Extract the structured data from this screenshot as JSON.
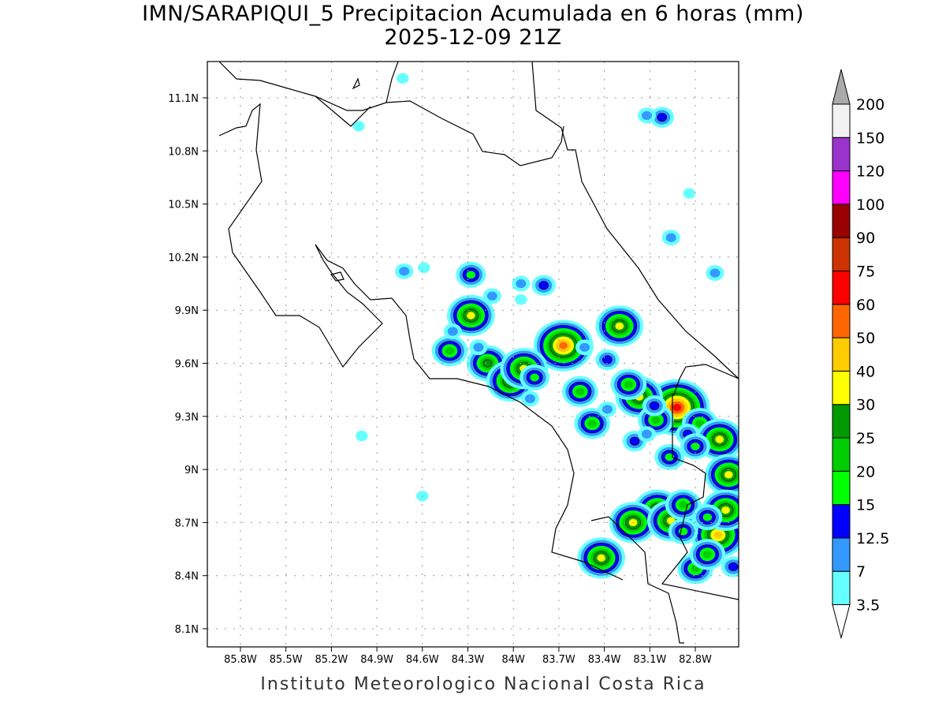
{
  "title": {
    "line1": "IMN/SARAPIQUI_5 Precipitacion Acumulada en 6 horas (mm)",
    "line2": "2025-12-09 21Z"
  },
  "footer": "Instituto Meteorologico Nacional Costa Rica",
  "map": {
    "lon_range": [
      -85.98,
      -82.52
    ],
    "lat_range": [
      8.0,
      11.3
    ],
    "lon_ticks": [
      {
        "v": -85.8,
        "label": "85.8W"
      },
      {
        "v": -85.5,
        "label": "85.5W"
      },
      {
        "v": -85.2,
        "label": "85.2W"
      },
      {
        "v": -84.9,
        "label": "84.9W"
      },
      {
        "v": -84.6,
        "label": "84.6W"
      },
      {
        "v": -84.3,
        "label": "84.3W"
      },
      {
        "v": -84.0,
        "label": "84W"
      },
      {
        "v": -83.7,
        "label": "83.7W"
      },
      {
        "v": -83.4,
        "label": "83.4W"
      },
      {
        "v": -83.1,
        "label": "83.1W"
      },
      {
        "v": -82.8,
        "label": "82.8W"
      }
    ],
    "lat_ticks": [
      {
        "v": 11.1,
        "label": "11.1N"
      },
      {
        "v": 10.8,
        "label": "10.8N"
      },
      {
        "v": 10.5,
        "label": "10.5N"
      },
      {
        "v": 10.2,
        "label": "10.2N"
      },
      {
        "v": 9.9,
        "label": "9.9N"
      },
      {
        "v": 9.6,
        "label": "9.6N"
      },
      {
        "v": 9.3,
        "label": "9.3N"
      },
      {
        "v": 9.0,
        "label": "9N"
      },
      {
        "v": 8.7,
        "label": "8.7N"
      },
      {
        "v": 8.4,
        "label": "8.4N"
      },
      {
        "v": 8.1,
        "label": "8.1N"
      }
    ],
    "cells": [
      [
        -84.28,
        9.87,
        6
      ],
      [
        -83.67,
        9.7,
        8
      ],
      [
        -82.92,
        9.35,
        9
      ],
      [
        -83.42,
        8.5,
        6
      ],
      [
        -83.3,
        9.81,
        6
      ],
      [
        -83.17,
        9.41,
        6
      ],
      [
        -83.24,
        9.48,
        4
      ],
      [
        -84.28,
        10.1,
        3
      ],
      [
        -84.17,
        9.6,
        5
      ],
      [
        -84.02,
        9.5,
        6
      ],
      [
        -83.93,
        9.57,
        6
      ],
      [
        -84.42,
        9.67,
        4
      ],
      [
        -83.56,
        9.44,
        4
      ],
      [
        -83.48,
        9.26,
        4
      ],
      [
        -83.06,
        9.28,
        4
      ],
      [
        -83.07,
        9.36,
        2
      ],
      [
        -82.77,
        9.26,
        4
      ],
      [
        -82.64,
        9.17,
        6
      ],
      [
        -82.58,
        8.97,
        6
      ],
      [
        -82.97,
        9.07,
        3
      ],
      [
        -83.05,
        8.77,
        6
      ],
      [
        -83.21,
        8.7,
        6
      ],
      [
        -82.96,
        8.71,
        6
      ],
      [
        -82.88,
        8.8,
        4
      ],
      [
        -82.65,
        8.63,
        7
      ],
      [
        -82.6,
        8.77,
        6
      ],
      [
        -82.8,
        8.44,
        4
      ],
      [
        -82.72,
        8.52,
        4
      ],
      [
        -82.72,
        8.73,
        3
      ],
      [
        -83.02,
        10.99,
        2
      ],
      [
        -83.12,
        11.0,
        1
      ],
      [
        -85.02,
        10.94,
        0
      ],
      [
        -84.73,
        11.21,
        0
      ],
      [
        -82.96,
        10.31,
        1
      ],
      [
        -82.84,
        10.56,
        0
      ],
      [
        -82.67,
        10.11,
        1
      ],
      [
        -84.59,
        10.14,
        0
      ],
      [
        -84.72,
        10.12,
        1
      ],
      [
        -85.0,
        9.19,
        0
      ],
      [
        -84.6,
        8.85,
        0
      ],
      [
        -83.95,
        10.05,
        1
      ],
      [
        -83.8,
        10.04,
        2
      ],
      [
        -84.14,
        9.98,
        1
      ],
      [
        -83.95,
        9.96,
        0
      ],
      [
        -83.38,
        9.62,
        2
      ],
      [
        -83.53,
        9.69,
        1
      ],
      [
        -84.23,
        9.69,
        1
      ],
      [
        -83.86,
        9.52,
        3
      ],
      [
        -83.89,
        9.4,
        1
      ],
      [
        -83.38,
        9.34,
        1
      ],
      [
        -83.2,
        9.16,
        2
      ],
      [
        -83.12,
        9.2,
        1
      ],
      [
        -82.85,
        9.2,
        2
      ],
      [
        -82.8,
        9.13,
        3
      ],
      [
        -84.4,
        9.78,
        1
      ],
      [
        -82.55,
        8.45,
        2
      ],
      [
        -82.88,
        8.65,
        3
      ]
    ]
  },
  "colorbar": {
    "levels": [
      "3.5",
      "7",
      "12.5",
      "15",
      "20",
      "25",
      "30",
      "40",
      "50",
      "60",
      "75",
      "90",
      "100",
      "120",
      "150",
      "200"
    ],
    "colors": [
      "#66ffff",
      "#3399ff",
      "#0000ff",
      "#00ff00",
      "#00cc00",
      "#009900",
      "#ffff00",
      "#ffcc00",
      "#ff6600",
      "#ff0000",
      "#cc3300",
      "#990000",
      "#ff00ff",
      "#9933cc",
      "#f2f2f2"
    ],
    "over_color": "#aaaaaa",
    "under_color": "#ffffff"
  }
}
